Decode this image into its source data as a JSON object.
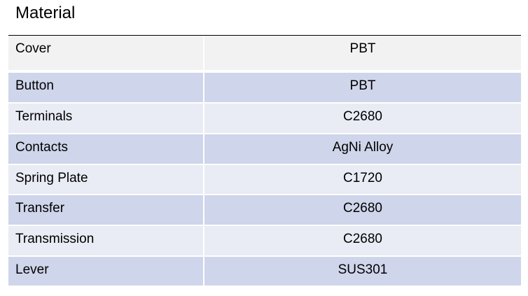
{
  "title": "Material",
  "colors": {
    "header_row": "#f2f2f2",
    "row_dark": "#cfd5ea",
    "row_light": "#e9ebf5"
  },
  "rows": [
    {
      "part": "Cover",
      "material": "PBT"
    },
    {
      "part": "Button",
      "material": "PBT"
    },
    {
      "part": "Terminals",
      "material": "C2680"
    },
    {
      "part": "Contacts",
      "material": "AgNi Alloy"
    },
    {
      "part": "Spring Plate",
      "material": "C1720"
    },
    {
      "part": "Transfer",
      "material": "C2680"
    },
    {
      "part": "Transmission",
      "material": "C2680"
    },
    {
      "part": "Lever",
      "material": "SUS301"
    }
  ]
}
